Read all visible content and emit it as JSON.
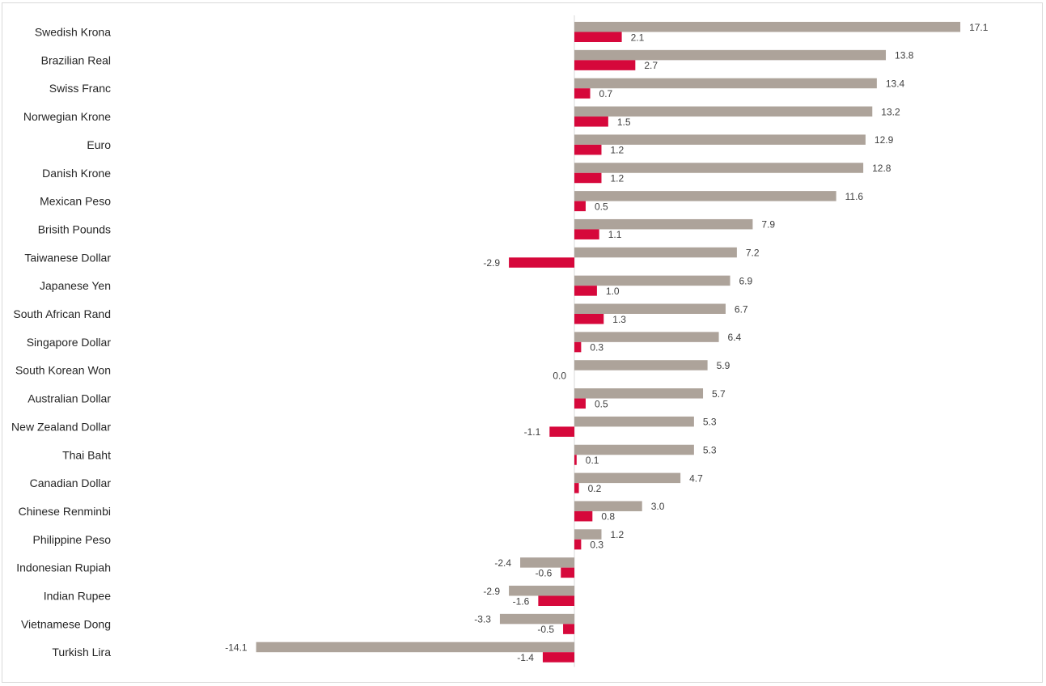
{
  "chart_data": {
    "type": "bar",
    "orientation": "horizontal",
    "title": "",
    "xlabel": "",
    "ylabel": "",
    "xlim": [
      -15,
      17.5
    ],
    "grid": false,
    "legend": "none",
    "categories": [
      "Swedish Krona",
      "Brazilian Real",
      "Swiss Franc",
      "Norwegian Krone",
      "Euro",
      "Danish Krone",
      "Mexican Peso",
      "Brisith Pounds",
      "Taiwanese Dollar",
      "Japanese Yen",
      "South African Rand",
      "Singapore Dollar",
      "South Korean Won",
      "Australian Dollar",
      "New Zealand Dollar",
      "Thai Baht",
      "Canadian Dollar",
      "Chinese Renminbi",
      "Philippine Peso",
      "Indonesian Rupiah",
      "Indian Rupee",
      "Vietnamese Dong",
      "Turkish Lira"
    ],
    "series": [
      {
        "name": "Series 1",
        "color": "#ada39a",
        "values": [
          17.1,
          13.8,
          13.4,
          13.2,
          12.9,
          12.8,
          11.6,
          7.9,
          7.2,
          6.9,
          6.7,
          6.4,
          5.9,
          5.7,
          5.3,
          5.3,
          4.7,
          3.0,
          1.2,
          -2.4,
          -2.9,
          -3.3,
          -14.1
        ],
        "labels": [
          "17.1",
          "13.8",
          "13.4",
          "13.2",
          "12.9",
          "12.8",
          "11.6",
          "7.9",
          "7.2",
          "6.9",
          "6.7",
          "6.4",
          "5.9",
          "5.7",
          "5.3",
          "5.3",
          "4.7",
          "3.0",
          "1.2",
          "-2.4",
          "-2.9",
          "-3.3",
          "-14.1"
        ]
      },
      {
        "name": "Series 2",
        "color": "#d6083b",
        "values": [
          2.1,
          2.7,
          0.7,
          1.5,
          1.2,
          1.2,
          0.5,
          1.1,
          -2.9,
          1.0,
          1.3,
          0.3,
          0.0,
          0.5,
          -1.1,
          0.1,
          0.2,
          0.8,
          0.3,
          -0.6,
          -1.6,
          -0.5,
          -1.4
        ],
        "labels": [
          "2.1",
          "2.7",
          "0.7",
          "1.5",
          "1.2",
          "1.2",
          "0.5",
          "1.1",
          "-2.9",
          "1.0",
          "1.3",
          "0.3",
          "0.0",
          "0.5",
          "-1.1",
          "0.1",
          "0.2",
          "0.8",
          "0.3",
          "-0.6",
          "-1.6",
          "-0.5",
          "-1.4"
        ]
      }
    ],
    "axis_line_color": "#d9d9d9"
  }
}
